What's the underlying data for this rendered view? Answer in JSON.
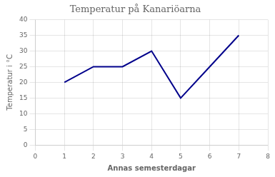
{
  "chart_data": {
    "type": "line",
    "title": "Temperatur på Kanariöarna",
    "xlabel": "Annas semesterdagar",
    "ylabel": "Temperatur i °C",
    "x": [
      1,
      2,
      3,
      4,
      5,
      6,
      7
    ],
    "values": [
      20,
      25,
      25,
      30,
      15,
      25,
      35
    ],
    "color": "#00008B",
    "xlim": [
      0,
      8
    ],
    "xticks": [
      0,
      1,
      2,
      3,
      4,
      5,
      6,
      7,
      8
    ],
    "ylim": [
      0,
      40
    ],
    "yticks": [
      0,
      5,
      10,
      15,
      20,
      25,
      30,
      35,
      40
    ],
    "grid": true
  }
}
